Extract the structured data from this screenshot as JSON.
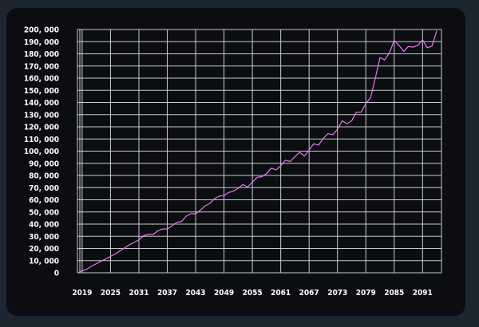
{
  "chart_data": {
    "type": "line",
    "title": "",
    "xlabel": "",
    "ylabel": "",
    "grid": true,
    "xlim": [
      2018,
      2095
    ],
    "ylim": [
      0,
      200000
    ],
    "x_tick_labels": [
      "2019",
      "2025",
      "2031",
      "2037",
      "2043",
      "2049",
      "2055",
      "2061",
      "2067",
      "2073",
      "2079",
      "2085",
      "2091"
    ],
    "y_tick_labels": [
      "0",
      "10, 000",
      "20, 000",
      "30, 000",
      "40, 000",
      "50, 000",
      "60, 000",
      "70, 000",
      "80, 000",
      "90, 000",
      "100, 000",
      "110, 000",
      "120, 000",
      "130, 000",
      "140, 000",
      "150, 000",
      "160, 000",
      "170, 000",
      "180, 000",
      "190, 000",
      "200, 000"
    ],
    "x_ticks": [
      2019,
      2025,
      2031,
      2037,
      2043,
      2049,
      2055,
      2061,
      2067,
      2073,
      2079,
      2085,
      2091
    ],
    "y_ticks": [
      0,
      10000,
      20000,
      30000,
      40000,
      50000,
      60000,
      70000,
      80000,
      90000,
      100000,
      110000,
      120000,
      130000,
      140000,
      150000,
      160000,
      170000,
      180000,
      190000,
      200000
    ],
    "line_color": "#e878e8",
    "series": [
      {
        "x": [
          2018,
          2019,
          2020,
          2021,
          2022,
          2023,
          2024,
          2025,
          2026,
          2027,
          2028,
          2029,
          2030,
          2031,
          2032,
          2033,
          2034,
          2035,
          2036,
          2037,
          2038,
          2039,
          2040,
          2041,
          2042,
          2043,
          2044,
          2045,
          2046,
          2047,
          2048,
          2049,
          2050,
          2051,
          2052,
          2053,
          2054,
          2055,
          2056,
          2057,
          2058,
          2059,
          2060,
          2061,
          2062,
          2063,
          2064,
          2065,
          2066,
          2067,
          2068,
          2069,
          2070,
          2071,
          2072,
          2073,
          2074,
          2075,
          2076,
          2077,
          2078,
          2079,
          2080,
          2081,
          2082,
          2083,
          2084,
          2085,
          2086,
          2087,
          2088,
          2089,
          2090,
          2091,
          2092,
          2093,
          2094
        ],
        "y": [
          0,
          1500,
          3000,
          5500,
          7500,
          9500,
          11500,
          13500,
          15500,
          18000,
          20500,
          23000,
          25000,
          27000,
          30500,
          31500,
          31500,
          34500,
          36000,
          36000,
          38500,
          41500,
          42000,
          46500,
          48500,
          48500,
          51500,
          55000,
          57000,
          61000,
          63000,
          63500,
          66000,
          67000,
          69500,
          72500,
          70500,
          74500,
          78500,
          79000,
          81500,
          86000,
          84500,
          88000,
          92500,
          91500,
          95500,
          99000,
          96000,
          101000,
          106000,
          105000,
          110500,
          114500,
          113500,
          118000,
          125000,
          122500,
          125000,
          132000,
          132000,
          139000,
          144000,
          160000,
          177000,
          175000,
          181000,
          191000,
          187000,
          182000,
          186000,
          185500,
          187000,
          191500,
          185000,
          186500,
          199000
        ]
      }
    ]
  }
}
